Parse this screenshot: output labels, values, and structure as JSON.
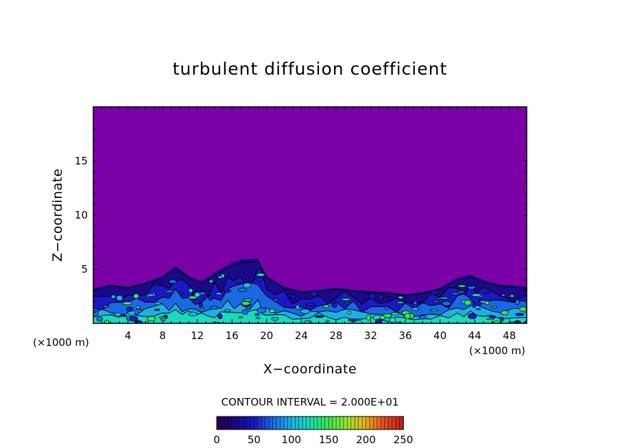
{
  "chart_data": {
    "type": "heatmap",
    "title": "turbulent diffusion coefficient",
    "xlabel": "X−coordinate",
    "ylabel": "Z−coordinate",
    "x_unit_left": "(×1000 m)",
    "x_unit_right": "(×1000 m)",
    "xlim": [
      0,
      50
    ],
    "ylim": [
      0,
      20
    ],
    "xticks": [
      4,
      8,
      12,
      16,
      20,
      24,
      28,
      32,
      36,
      40,
      44,
      48
    ],
    "yticks": [
      5,
      10,
      15
    ],
    "contour_interval_text": "CONTOUR INTERVAL = 2.000E+01",
    "colorbar": {
      "min": 0,
      "max": 250,
      "ticks": [
        0,
        50,
        100,
        150,
        200,
        250
      ],
      "colors": [
        "#2a0050",
        "#1a0a8a",
        "#1a1ac8",
        "#1a6ee6",
        "#1ab4e6",
        "#1adcb4",
        "#3ce650",
        "#96e632",
        "#e6b41e",
        "#e6501e",
        "#c81e1e"
      ]
    },
    "background_value_color": "#7c00a8",
    "boundary_layer_top_profile": [
      [
        0,
        3.2
      ],
      [
        2,
        3.6
      ],
      [
        4,
        3.4
      ],
      [
        6,
        3.8
      ],
      [
        8,
        4.4
      ],
      [
        9.5,
        5.3
      ],
      [
        11,
        4.4
      ],
      [
        12.5,
        3.9
      ],
      [
        14,
        4.7
      ],
      [
        15.5,
        5.4
      ],
      [
        17,
        5.9
      ],
      [
        19,
        6.0
      ],
      [
        20,
        4.4
      ],
      [
        22,
        3.4
      ],
      [
        24,
        3.0
      ],
      [
        26,
        3.1
      ],
      [
        28,
        3.3
      ],
      [
        30,
        3.1
      ],
      [
        32,
        3.0
      ],
      [
        34,
        2.9
      ],
      [
        36,
        2.7
      ],
      [
        38,
        2.9
      ],
      [
        40,
        3.3
      ],
      [
        42,
        4.2
      ],
      [
        43.5,
        4.5
      ],
      [
        45,
        4.0
      ],
      [
        47,
        3.6
      ],
      [
        50,
        3.4
      ]
    ]
  }
}
